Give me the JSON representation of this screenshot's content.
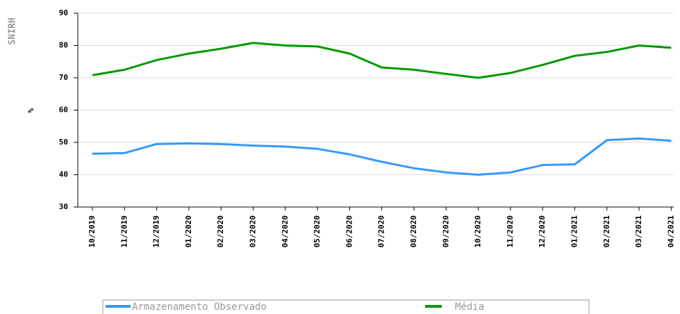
{
  "chart_data": {
    "type": "line",
    "brand": "SNIRH",
    "y_label": "%",
    "categories": [
      "10/2019",
      "11/2019",
      "12/2019",
      "01/2020",
      "02/2020",
      "03/2020",
      "04/2020",
      "05/2020",
      "06/2020",
      "07/2020",
      "08/2020",
      "09/2020",
      "10/2020",
      "11/2020",
      "12/2020",
      "01/2021",
      "02/2021",
      "03/2021",
      "04/2021"
    ],
    "series": [
      {
        "name": "Armazenamento Observado",
        "color": "#3399ff",
        "values": [
          46.5,
          46.7,
          49.5,
          49.7,
          49.5,
          49,
          48.7,
          48,
          46.3,
          44,
          42,
          40.7,
          40,
          40.7,
          43,
          43.2,
          50.7,
          51.2,
          50.5
        ]
      },
      {
        "name": "Média",
        "color": "#009900",
        "values": [
          70.8,
          72.5,
          75.5,
          77.5,
          79,
          80.8,
          80,
          79.7,
          77.5,
          73.2,
          72.5,
          71.2,
          70,
          71.5,
          74,
          76.8,
          78,
          80,
          79.3
        ]
      }
    ],
    "ylim": [
      30,
      90
    ],
    "yticks": [
      30,
      40,
      50,
      60,
      70,
      80,
      90
    ],
    "grid": true
  }
}
